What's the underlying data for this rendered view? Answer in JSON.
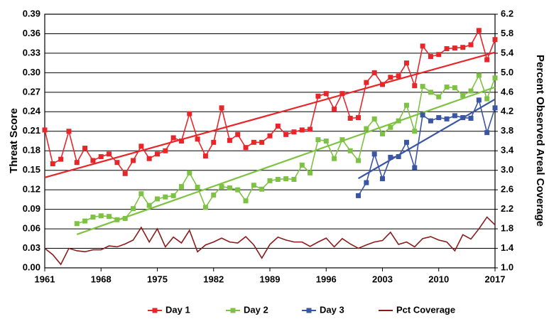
{
  "chart_data": {
    "type": "line",
    "y_label": "Threat Score",
    "y2_label": "Percent Observed Areal Coverage",
    "grid": true,
    "legend": "bottom",
    "xlim": [
      1961,
      2017
    ],
    "xticks": [
      1961,
      1968,
      1975,
      1982,
      1989,
      1996,
      2003,
      2010,
      2017
    ],
    "ylim": [
      0,
      0.39
    ],
    "yticks": [
      {
        "value": 0,
        "label": "0.00"
      },
      {
        "value": 0.03,
        "label": "0.03"
      },
      {
        "value": 0.06,
        "label": "0.06"
      },
      {
        "value": 0.09,
        "label": "0.09"
      },
      {
        "value": 0.12,
        "label": "0.12"
      },
      {
        "value": 0.15,
        "label": "0.15"
      },
      {
        "value": 0.18,
        "label": "0.18"
      },
      {
        "value": 0.21,
        "label": "0.21"
      },
      {
        "value": 0.24,
        "label": "0.24"
      },
      {
        "value": 0.27,
        "label": "0.27"
      },
      {
        "value": 0.3,
        "label": "0.30"
      },
      {
        "value": 0.33,
        "label": "0.33"
      },
      {
        "value": 0.36,
        "label": "0.36"
      },
      {
        "value": 0.39,
        "label": "0.39"
      }
    ],
    "y2lim": [
      1.0,
      6.2
    ],
    "y2ticks": [
      {
        "value": 1.0,
        "label": "1.0"
      },
      {
        "value": 1.4,
        "label": "1.4"
      },
      {
        "value": 1.8,
        "label": "1.8"
      },
      {
        "value": 2.2,
        "label": "2.2"
      },
      {
        "value": 2.6,
        "label": "2.6"
      },
      {
        "value": 3.0,
        "label": "3.0"
      },
      {
        "value": 3.4,
        "label": "3.4"
      },
      {
        "value": 3.8,
        "label": "3.8"
      },
      {
        "value": 4.2,
        "label": "4.2"
      },
      {
        "value": 4.6,
        "label": "4.6"
      },
      {
        "value": 5.0,
        "label": "5.0"
      },
      {
        "value": 5.4,
        "label": "5.4"
      },
      {
        "value": 5.8,
        "label": "5.8"
      },
      {
        "value": 6.2,
        "label": "6.2"
      }
    ],
    "x": [
      1961,
      1962,
      1963,
      1964,
      1965,
      1966,
      1967,
      1968,
      1969,
      1970,
      1971,
      1972,
      1973,
      1974,
      1975,
      1976,
      1977,
      1978,
      1979,
      1980,
      1981,
      1982,
      1983,
      1984,
      1985,
      1986,
      1987,
      1988,
      1989,
      1990,
      1991,
      1992,
      1993,
      1994,
      1995,
      1996,
      1997,
      1998,
      1999,
      2000,
      2001,
      2002,
      2003,
      2004,
      2005,
      2006,
      2007,
      2008,
      2009,
      2010,
      2011,
      2012,
      2013,
      2014,
      2015,
      2016,
      2017
    ],
    "series": [
      {
        "name": "Day 1",
        "color": "#e8262a",
        "marker": "square",
        "trendline": true,
        "values": [
          0.212,
          0.16,
          0.167,
          0.21,
          0.162,
          0.184,
          0.165,
          0.171,
          0.175,
          0.162,
          0.145,
          0.165,
          0.187,
          0.168,
          0.175,
          0.18,
          0.2,
          0.195,
          0.237,
          0.198,
          0.172,
          0.193,
          0.246,
          0.196,
          0.205,
          0.185,
          0.193,
          0.193,
          0.203,
          0.218,
          0.205,
          0.209,
          0.212,
          0.213,
          0.264,
          0.268,
          0.244,
          0.268,
          0.23,
          0.231,
          0.285,
          0.3,
          0.282,
          0.293,
          0.295,
          0.315,
          0.28,
          0.341,
          0.325,
          0.328,
          0.337,
          0.338,
          0.339,
          0.343,
          0.365,
          0.32,
          0.351
        ]
      },
      {
        "name": "Day 2",
        "color": "#7dc242",
        "marker": "square",
        "trendline": true,
        "values": [
          null,
          null,
          null,
          null,
          0.068,
          0.072,
          0.078,
          0.08,
          0.079,
          0.074,
          0.076,
          0.091,
          0.114,
          0.096,
          0.106,
          0.109,
          0.111,
          0.125,
          0.146,
          0.124,
          0.093,
          0.112,
          0.125,
          0.123,
          0.12,
          0.103,
          0.127,
          0.121,
          0.134,
          0.136,
          0.137,
          0.136,
          0.158,
          0.146,
          0.197,
          0.195,
          0.168,
          0.197,
          0.18,
          0.165,
          0.214,
          0.229,
          0.206,
          0.216,
          0.226,
          0.25,
          0.21,
          0.279,
          0.27,
          0.263,
          0.278,
          0.277,
          0.265,
          0.272,
          0.296,
          0.26,
          0.292
        ]
      },
      {
        "name": "Day 3",
        "color": "#3a55a4",
        "marker": "square",
        "trendline": true,
        "values": [
          null,
          null,
          null,
          null,
          null,
          null,
          null,
          null,
          null,
          null,
          null,
          null,
          null,
          null,
          null,
          null,
          null,
          null,
          null,
          null,
          null,
          null,
          null,
          null,
          null,
          null,
          null,
          null,
          null,
          null,
          null,
          null,
          null,
          null,
          null,
          null,
          null,
          null,
          null,
          0.111,
          0.131,
          0.175,
          0.137,
          0.17,
          0.171,
          0.193,
          0.154,
          0.235,
          0.226,
          0.231,
          0.229,
          0.234,
          0.231,
          0.23,
          0.258,
          0.208,
          0.246
        ]
      },
      {
        "name": "Pct Coverage",
        "color": "#8b1a1a",
        "marker": "none",
        "trendline": false,
        "axis": "y2",
        "values": [
          1.4,
          1.27,
          1.07,
          1.4,
          1.35,
          1.33,
          1.37,
          1.37,
          1.45,
          1.43,
          1.49,
          1.57,
          1.83,
          1.53,
          1.8,
          1.43,
          1.63,
          1.51,
          1.77,
          1.33,
          1.47,
          1.53,
          1.61,
          1.53,
          1.51,
          1.64,
          1.47,
          1.2,
          1.48,
          1.63,
          1.57,
          1.53,
          1.53,
          1.44,
          1.53,
          1.61,
          1.43,
          1.6,
          1.49,
          1.4,
          1.47,
          1.53,
          1.56,
          1.73,
          1.48,
          1.53,
          1.43,
          1.6,
          1.64,
          1.57,
          1.53,
          1.35,
          1.68,
          1.59,
          1.8,
          2.04,
          1.88
        ]
      }
    ]
  }
}
